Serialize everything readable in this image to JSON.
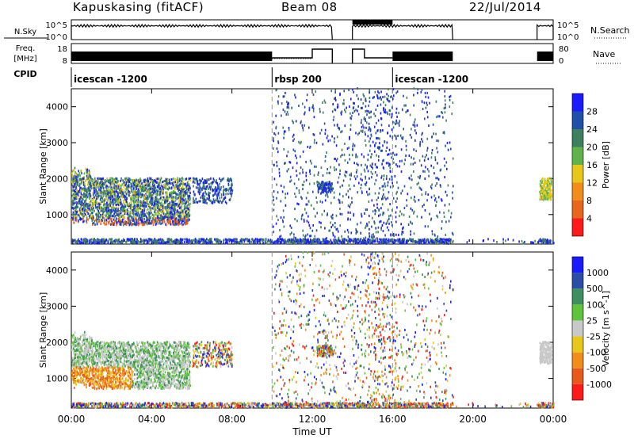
{
  "header": {
    "station": "Kapuskasing (fitACF)",
    "beam": "Beam 08",
    "date": "22/Jul/2014"
  },
  "panels": {
    "nsky": {
      "label": "N.Sky",
      "ticks": [
        "10^5",
        "10^0"
      ],
      "right_label": "N.Search",
      "right_ticks": [
        "10^5",
        "10^0"
      ]
    },
    "freq": {
      "label_top": "Freq.",
      "label_bottom": "[MHz]",
      "ticks": [
        "18",
        "8"
      ],
      "right_label": "Nave",
      "right_ticks": [
        "80",
        "0"
      ]
    },
    "cpid": {
      "label": "CPID",
      "segments": [
        {
          "start_hour": 0,
          "text": "icescan -1200"
        },
        {
          "start_hour": 10,
          "text": "rbsp 200"
        },
        {
          "start_hour": 16,
          "text": "icescan -1200"
        }
      ]
    }
  },
  "chart_data": {
    "type": "heatmap",
    "xlabel": "Time UT",
    "x_ticks": [
      "00:00",
      "04:00",
      "08:00",
      "12:00",
      "16:00",
      "20:00",
      "00:00"
    ],
    "xlim_hours": [
      0,
      24
    ],
    "ylabel": "Slant Range [km]",
    "ylim": [
      180,
      4500
    ],
    "y_ticks": [
      1000,
      2000,
      3000,
      4000
    ],
    "power": {
      "colorbar_label": "Power [dB]",
      "levels": [
        "4",
        "8",
        "12",
        "16",
        "20",
        "24",
        "28"
      ],
      "colors": [
        "#1a1aff",
        "#1f4fa8",
        "#3d7f5e",
        "#5fb34a",
        "#e6c71a",
        "#f28c1a",
        "#e8661c",
        "#ff1a1a"
      ]
    },
    "velocity": {
      "colorbar_label": "Velocity [m s^-1]",
      "levels": [
        "1000",
        "500",
        "100",
        "25",
        "-25",
        "-100",
        "-500",
        "-1000"
      ],
      "colors": [
        "#1a1aff",
        "#2a4da8",
        "#3d8f5e",
        "#5fc43a",
        "#c8c8c8",
        "#e6c71a",
        "#f28c1a",
        "#e85a1c",
        "#ff1a1a"
      ]
    }
  }
}
